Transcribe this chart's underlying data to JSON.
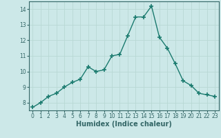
{
  "x": [
    0,
    1,
    2,
    3,
    4,
    5,
    6,
    7,
    8,
    9,
    10,
    11,
    12,
    13,
    14,
    15,
    16,
    17,
    18,
    19,
    20,
    21,
    22,
    23
  ],
  "y": [
    7.7,
    8.0,
    8.4,
    8.6,
    9.0,
    9.3,
    9.5,
    10.3,
    10.0,
    10.1,
    11.0,
    11.1,
    12.3,
    13.5,
    13.5,
    14.2,
    12.2,
    11.5,
    10.5,
    9.4,
    9.1,
    8.6,
    8.5,
    8.4
  ],
  "line_color": "#1a7a6e",
  "marker": "+",
  "marker_size": 4,
  "marker_lw": 1.2,
  "xlabel": "Humidex (Indice chaleur)",
  "xlim": [
    -0.5,
    23.5
  ],
  "ylim": [
    7.5,
    14.5
  ],
  "yticks": [
    8,
    9,
    10,
    11,
    12,
    13,
    14
  ],
  "xticks": [
    0,
    1,
    2,
    3,
    4,
    5,
    6,
    7,
    8,
    9,
    10,
    11,
    12,
    13,
    14,
    15,
    16,
    17,
    18,
    19,
    20,
    21,
    22,
    23
  ],
  "bg_color": "#cce8e8",
  "grid_color": "#b8d8d4",
  "tick_fontsize": 5.5,
  "xlabel_fontsize": 7,
  "line_width": 1.0,
  "spine_color": "#336666"
}
